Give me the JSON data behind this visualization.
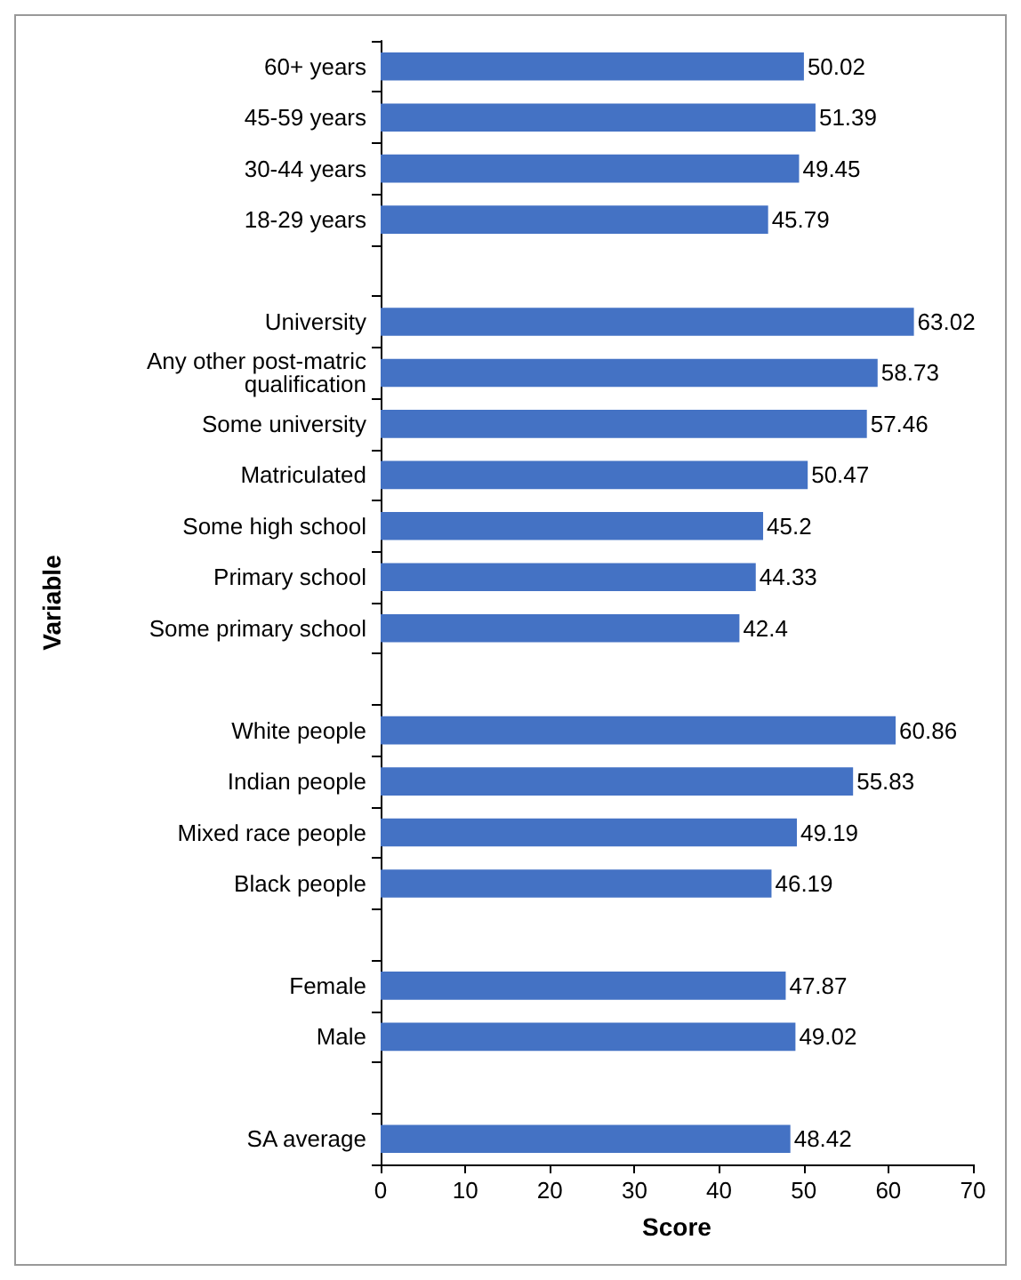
{
  "chart_data": {
    "type": "bar",
    "orientation": "horizontal",
    "xlabel": "Score",
    "ylabel": "Variable",
    "categories": [
      "60+ years",
      "45-59 years",
      "30-44 years",
      "18-29 years",
      null,
      "University",
      "Any other post-matric\nqualification",
      "Some university",
      "Matriculated",
      "Some high school",
      "Primary school",
      "Some primary school",
      null,
      "White people",
      "Indian people",
      "Mixed race people",
      "Black people",
      null,
      "Female",
      "Male",
      null,
      "SA average"
    ],
    "values": [
      50.02,
      51.39,
      49.45,
      45.79,
      null,
      63.02,
      58.73,
      57.46,
      50.47,
      45.2,
      44.33,
      42.4,
      null,
      60.86,
      55.83,
      49.19,
      46.19,
      null,
      47.87,
      49.02,
      null,
      48.42
    ],
    "color": "#4472c4",
    "xlim": [
      0,
      70
    ],
    "xticks": [
      0,
      10,
      20,
      30,
      40,
      50,
      60,
      70
    ],
    "grid": false,
    "data_labels": true
  }
}
